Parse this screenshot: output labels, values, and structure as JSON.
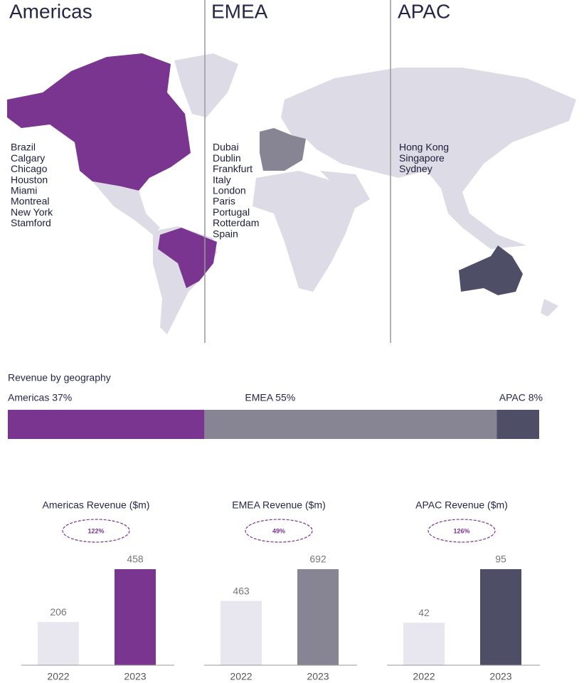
{
  "map": {
    "regions": [
      {
        "name": "Americas",
        "cities": [
          "Brazil",
          "Calgary",
          "Chicago",
          "Houston",
          "Miami",
          "Montreal",
          "New York",
          "Stamford"
        ]
      },
      {
        "name": "EMEA",
        "cities": [
          "Dubai",
          "Dublin",
          "Frankfurt",
          "Italy",
          "London",
          "Paris",
          "Portugal",
          "Rotterdam",
          "Spain"
        ]
      },
      {
        "name": "APAC",
        "cities": [
          "Hong Kong",
          "Singapore",
          "Sydney"
        ]
      }
    ]
  },
  "chart_data": [
    {
      "type": "stacked-bar",
      "title": "Revenue by geography",
      "series": [
        {
          "values": [
            37
          ],
          "value_labels": [
            "Americas 37%"
          ],
          "color": "#7a3590"
        },
        {
          "values": [
            55
          ],
          "value_labels": [
            "EMEA 55%"
          ],
          "color": "#878593"
        },
        {
          "values": [
            8
          ],
          "value_labels": [
            "APAC 8%"
          ],
          "color": "#4e4e66"
        }
      ]
    },
    {
      "type": "bar",
      "title": "Americas Revenue ($m)",
      "annotation": "122%",
      "categories": [
        "2022",
        "2023"
      ],
      "values": [
        206,
        458
      ],
      "colors": [
        "#e8e6ef",
        "#7a3590"
      ]
    },
    {
      "type": "bar",
      "title": "EMEA Revenue ($m)",
      "annotation": "49%",
      "categories": [
        "2022",
        "2023"
      ],
      "values": [
        463,
        692
      ],
      "colors": [
        "#e8e6ef",
        "#878593"
      ]
    },
    {
      "type": "bar",
      "title": "APAC Revenue ($m)",
      "annotation": "126%",
      "categories": [
        "2022",
        "2023"
      ],
      "values": [
        42,
        95
      ],
      "colors": [
        "#e8e6ef",
        "#4e4e66"
      ]
    }
  ]
}
